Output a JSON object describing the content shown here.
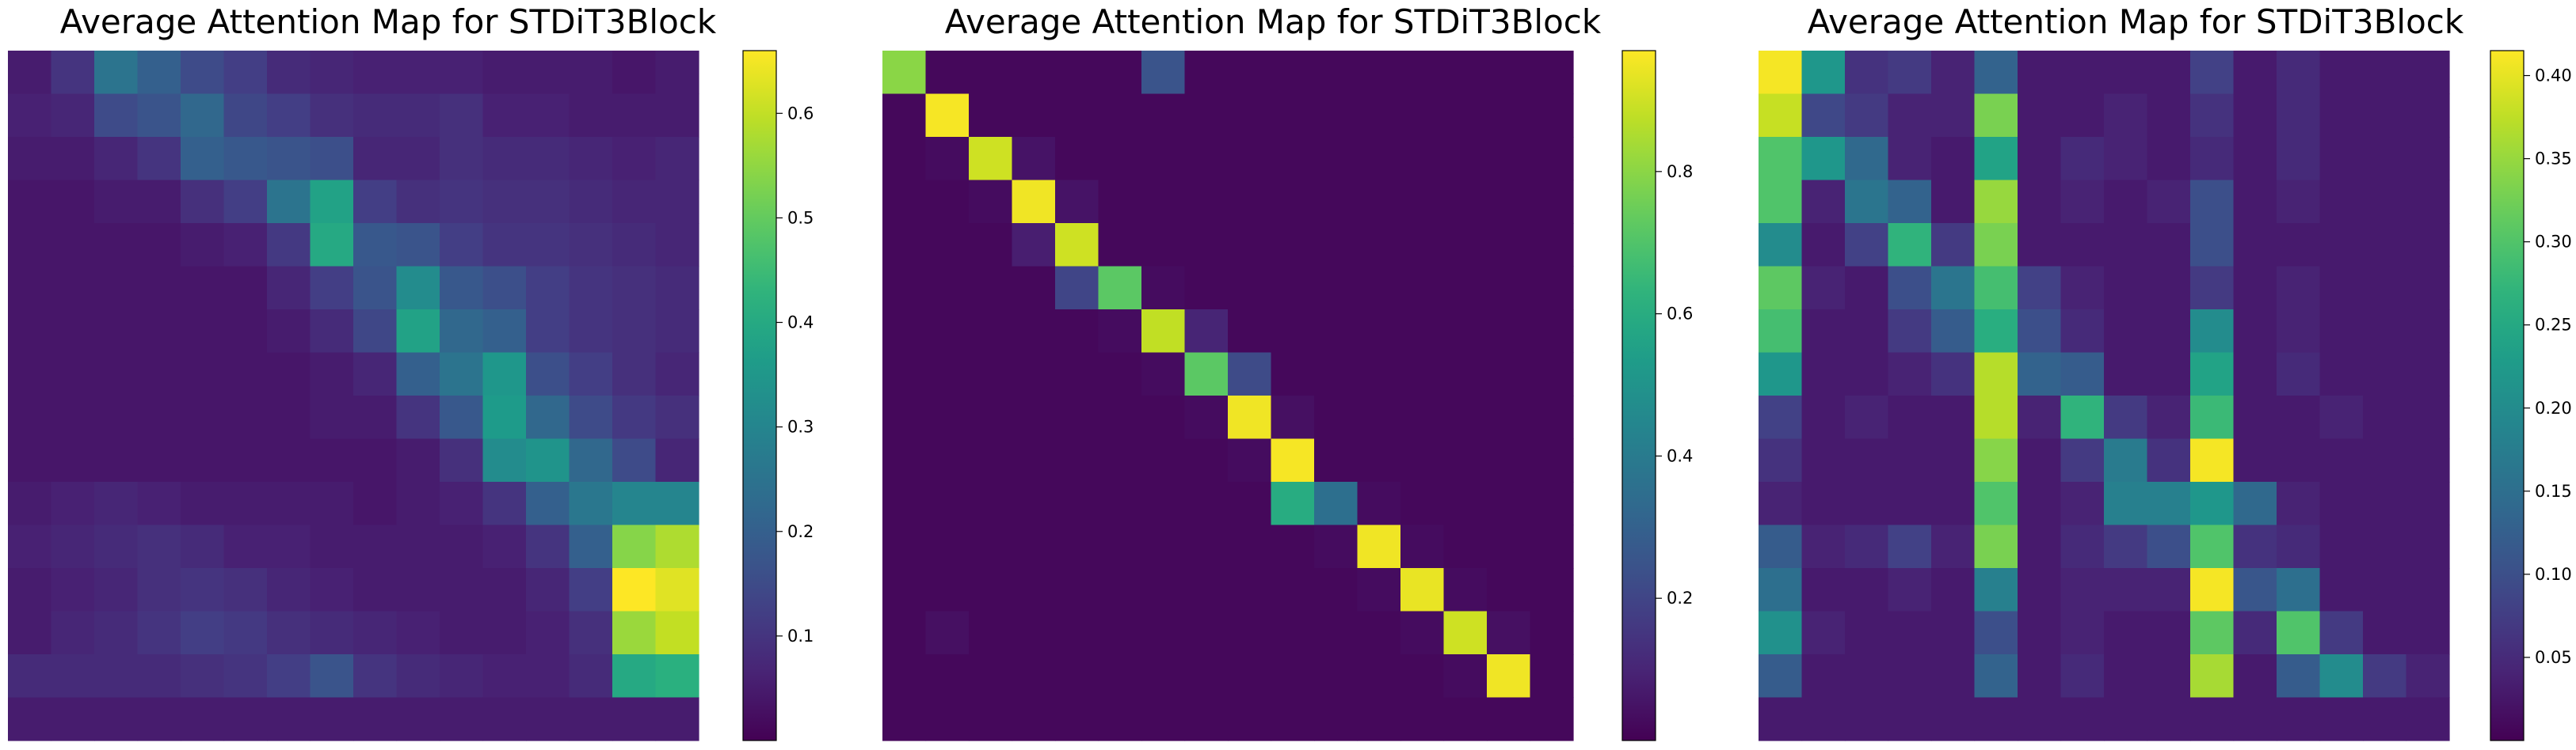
{
  "chart_data": [
    {
      "type": "heatmap",
      "title": "Average Attention Map for STDiT3Block",
      "colormap": "viridis",
      "vmin": 0.0,
      "vmax": 0.66,
      "colorbar_ticks": [
        "0.1",
        "0.2",
        "0.3",
        "0.4",
        "0.5",
        "0.6"
      ],
      "colorbar_tick_values": [
        0.1,
        0.2,
        0.3,
        0.4,
        0.5,
        0.6
      ],
      "matrix": [
        [
          0.05,
          0.1,
          0.25,
          0.2,
          0.15,
          0.12,
          0.08,
          0.07,
          0.06,
          0.06,
          0.06,
          0.05,
          0.05,
          0.05,
          0.04,
          0.05
        ],
        [
          0.06,
          0.07,
          0.15,
          0.17,
          0.22,
          0.14,
          0.12,
          0.09,
          0.08,
          0.08,
          0.09,
          0.06,
          0.06,
          0.05,
          0.05,
          0.05
        ],
        [
          0.05,
          0.05,
          0.07,
          0.1,
          0.2,
          0.18,
          0.17,
          0.16,
          0.07,
          0.07,
          0.09,
          0.08,
          0.08,
          0.07,
          0.06,
          0.07
        ],
        [
          0.04,
          0.04,
          0.05,
          0.05,
          0.09,
          0.12,
          0.25,
          0.38,
          0.12,
          0.09,
          0.1,
          0.09,
          0.09,
          0.08,
          0.07,
          0.07
        ],
        [
          0.04,
          0.04,
          0.04,
          0.04,
          0.05,
          0.06,
          0.11,
          0.4,
          0.18,
          0.17,
          0.12,
          0.1,
          0.1,
          0.09,
          0.08,
          0.07
        ],
        [
          0.04,
          0.04,
          0.04,
          0.04,
          0.04,
          0.04,
          0.07,
          0.12,
          0.17,
          0.32,
          0.18,
          0.16,
          0.12,
          0.1,
          0.09,
          0.08
        ],
        [
          0.04,
          0.04,
          0.04,
          0.04,
          0.04,
          0.04,
          0.05,
          0.08,
          0.14,
          0.38,
          0.22,
          0.2,
          0.12,
          0.1,
          0.09,
          0.08
        ],
        [
          0.04,
          0.04,
          0.04,
          0.04,
          0.04,
          0.04,
          0.04,
          0.05,
          0.07,
          0.2,
          0.25,
          0.35,
          0.16,
          0.12,
          0.09,
          0.07
        ],
        [
          0.04,
          0.04,
          0.04,
          0.04,
          0.04,
          0.04,
          0.04,
          0.05,
          0.05,
          0.1,
          0.18,
          0.36,
          0.22,
          0.15,
          0.11,
          0.09
        ],
        [
          0.04,
          0.04,
          0.04,
          0.04,
          0.04,
          0.04,
          0.04,
          0.04,
          0.04,
          0.05,
          0.09,
          0.32,
          0.34,
          0.22,
          0.15,
          0.07
        ],
        [
          0.05,
          0.06,
          0.07,
          0.06,
          0.05,
          0.05,
          0.05,
          0.05,
          0.04,
          0.05,
          0.06,
          0.1,
          0.2,
          0.26,
          0.3,
          0.3
        ],
        [
          0.06,
          0.07,
          0.08,
          0.09,
          0.08,
          0.06,
          0.06,
          0.05,
          0.05,
          0.05,
          0.05,
          0.06,
          0.1,
          0.2,
          0.54,
          0.58
        ],
        [
          0.05,
          0.06,
          0.07,
          0.09,
          0.1,
          0.09,
          0.07,
          0.06,
          0.05,
          0.05,
          0.05,
          0.05,
          0.07,
          0.12,
          0.66,
          0.63
        ],
        [
          0.05,
          0.07,
          0.08,
          0.1,
          0.12,
          0.11,
          0.09,
          0.08,
          0.07,
          0.06,
          0.05,
          0.05,
          0.06,
          0.09,
          0.56,
          0.6
        ],
        [
          0.08,
          0.08,
          0.08,
          0.08,
          0.09,
          0.1,
          0.12,
          0.17,
          0.1,
          0.08,
          0.07,
          0.06,
          0.06,
          0.08,
          0.4,
          0.42
        ],
        [
          0.05,
          0.05,
          0.05,
          0.05,
          0.05,
          0.05,
          0.05,
          0.05,
          0.05,
          0.05,
          0.05,
          0.05,
          0.05,
          0.05,
          0.05,
          0.05
        ]
      ]
    },
    {
      "type": "heatmap",
      "title": "Average Attention Map for STDiT3Block",
      "colormap": "viridis",
      "vmin": 0.0,
      "vmax": 0.97,
      "colorbar_ticks": [
        "0.2",
        "0.4",
        "0.6",
        "0.8"
      ],
      "colorbar_tick_values": [
        0.2,
        0.4,
        0.6,
        0.8
      ],
      "matrix": [
        [
          0.8,
          0.02,
          0.02,
          0.02,
          0.02,
          0.02,
          0.25,
          0.02,
          0.02,
          0.02,
          0.02,
          0.02,
          0.02,
          0.02,
          0.02,
          0.02
        ],
        [
          0.02,
          0.96,
          0.02,
          0.02,
          0.02,
          0.02,
          0.02,
          0.02,
          0.02,
          0.02,
          0.02,
          0.02,
          0.02,
          0.02,
          0.02,
          0.02
        ],
        [
          0.02,
          0.03,
          0.9,
          0.05,
          0.02,
          0.02,
          0.02,
          0.02,
          0.02,
          0.02,
          0.02,
          0.02,
          0.02,
          0.02,
          0.02,
          0.02
        ],
        [
          0.02,
          0.02,
          0.03,
          0.95,
          0.05,
          0.02,
          0.02,
          0.02,
          0.02,
          0.02,
          0.02,
          0.02,
          0.02,
          0.02,
          0.02,
          0.02
        ],
        [
          0.02,
          0.02,
          0.02,
          0.08,
          0.9,
          0.02,
          0.02,
          0.02,
          0.02,
          0.02,
          0.02,
          0.02,
          0.02,
          0.02,
          0.02,
          0.02
        ],
        [
          0.02,
          0.02,
          0.02,
          0.02,
          0.2,
          0.72,
          0.03,
          0.02,
          0.02,
          0.02,
          0.02,
          0.02,
          0.02,
          0.02,
          0.02,
          0.02
        ],
        [
          0.02,
          0.02,
          0.02,
          0.02,
          0.02,
          0.03,
          0.88,
          0.1,
          0.02,
          0.02,
          0.02,
          0.02,
          0.02,
          0.02,
          0.02,
          0.02
        ],
        [
          0.02,
          0.02,
          0.02,
          0.02,
          0.02,
          0.02,
          0.03,
          0.72,
          0.22,
          0.02,
          0.02,
          0.02,
          0.02,
          0.02,
          0.02,
          0.02
        ],
        [
          0.02,
          0.02,
          0.02,
          0.02,
          0.02,
          0.02,
          0.02,
          0.03,
          0.95,
          0.04,
          0.02,
          0.02,
          0.02,
          0.02,
          0.02,
          0.02
        ],
        [
          0.02,
          0.02,
          0.02,
          0.02,
          0.02,
          0.02,
          0.02,
          0.02,
          0.03,
          0.96,
          0.02,
          0.02,
          0.02,
          0.02,
          0.02,
          0.02
        ],
        [
          0.02,
          0.02,
          0.02,
          0.02,
          0.02,
          0.02,
          0.02,
          0.02,
          0.02,
          0.6,
          0.35,
          0.03,
          0.02,
          0.02,
          0.02,
          0.02
        ],
        [
          0.02,
          0.02,
          0.02,
          0.02,
          0.02,
          0.02,
          0.02,
          0.02,
          0.02,
          0.02,
          0.03,
          0.95,
          0.03,
          0.02,
          0.02,
          0.02
        ],
        [
          0.02,
          0.02,
          0.02,
          0.02,
          0.02,
          0.02,
          0.02,
          0.02,
          0.02,
          0.02,
          0.02,
          0.03,
          0.94,
          0.03,
          0.02,
          0.02
        ],
        [
          0.02,
          0.04,
          0.02,
          0.02,
          0.02,
          0.02,
          0.02,
          0.02,
          0.02,
          0.02,
          0.02,
          0.02,
          0.03,
          0.9,
          0.04,
          0.02
        ],
        [
          0.02,
          0.02,
          0.02,
          0.02,
          0.02,
          0.02,
          0.02,
          0.02,
          0.02,
          0.02,
          0.02,
          0.02,
          0.02,
          0.03,
          0.95,
          0.02
        ],
        [
          0.02,
          0.02,
          0.02,
          0.02,
          0.02,
          0.02,
          0.02,
          0.02,
          0.02,
          0.02,
          0.02,
          0.02,
          0.02,
          0.02,
          0.02,
          0.02
        ]
      ]
    },
    {
      "type": "heatmap",
      "title": "Average Attention Map for STDiT3Block",
      "colormap": "viridis",
      "vmin": 0.0,
      "vmax": 0.415,
      "colorbar_ticks": [
        "0.05",
        "0.10",
        "0.15",
        "0.20",
        "0.25",
        "0.30",
        "0.35",
        "0.40"
      ],
      "colorbar_tick_values": [
        0.05,
        0.1,
        0.15,
        0.2,
        0.25,
        0.3,
        0.35,
        0.4
      ],
      "matrix": [
        [
          0.41,
          0.22,
          0.06,
          0.07,
          0.04,
          0.13,
          0.03,
          0.03,
          0.03,
          0.03,
          0.08,
          0.03,
          0.05,
          0.03,
          0.03,
          0.03
        ],
        [
          0.38,
          0.09,
          0.07,
          0.04,
          0.04,
          0.33,
          0.03,
          0.03,
          0.04,
          0.03,
          0.06,
          0.03,
          0.05,
          0.03,
          0.03,
          0.03
        ],
        [
          0.3,
          0.22,
          0.14,
          0.04,
          0.03,
          0.24,
          0.03,
          0.05,
          0.04,
          0.03,
          0.05,
          0.03,
          0.05,
          0.03,
          0.03,
          0.03
        ],
        [
          0.3,
          0.04,
          0.16,
          0.13,
          0.03,
          0.35,
          0.03,
          0.04,
          0.03,
          0.04,
          0.1,
          0.03,
          0.04,
          0.03,
          0.03,
          0.03
        ],
        [
          0.2,
          0.03,
          0.08,
          0.27,
          0.07,
          0.33,
          0.03,
          0.03,
          0.03,
          0.03,
          0.1,
          0.03,
          0.03,
          0.03,
          0.03,
          0.03
        ],
        [
          0.31,
          0.04,
          0.03,
          0.1,
          0.16,
          0.29,
          0.08,
          0.04,
          0.03,
          0.03,
          0.07,
          0.03,
          0.04,
          0.03,
          0.03,
          0.03
        ],
        [
          0.29,
          0.03,
          0.03,
          0.07,
          0.12,
          0.26,
          0.1,
          0.05,
          0.03,
          0.03,
          0.2,
          0.03,
          0.04,
          0.03,
          0.03,
          0.03
        ],
        [
          0.22,
          0.03,
          0.03,
          0.04,
          0.06,
          0.37,
          0.13,
          0.12,
          0.03,
          0.03,
          0.24,
          0.03,
          0.05,
          0.03,
          0.03,
          0.03
        ],
        [
          0.08,
          0.03,
          0.04,
          0.03,
          0.03,
          0.37,
          0.04,
          0.27,
          0.07,
          0.04,
          0.28,
          0.03,
          0.03,
          0.04,
          0.03,
          0.03
        ],
        [
          0.06,
          0.03,
          0.03,
          0.03,
          0.03,
          0.34,
          0.03,
          0.07,
          0.17,
          0.06,
          0.41,
          0.03,
          0.03,
          0.03,
          0.03,
          0.03
        ],
        [
          0.04,
          0.03,
          0.03,
          0.03,
          0.03,
          0.3,
          0.03,
          0.04,
          0.18,
          0.18,
          0.22,
          0.14,
          0.04,
          0.03,
          0.03,
          0.03
        ],
        [
          0.12,
          0.04,
          0.05,
          0.08,
          0.04,
          0.33,
          0.03,
          0.05,
          0.07,
          0.1,
          0.3,
          0.06,
          0.05,
          0.03,
          0.03,
          0.03
        ],
        [
          0.15,
          0.03,
          0.03,
          0.04,
          0.03,
          0.18,
          0.03,
          0.04,
          0.04,
          0.04,
          0.41,
          0.11,
          0.15,
          0.03,
          0.03,
          0.03
        ],
        [
          0.21,
          0.04,
          0.03,
          0.03,
          0.03,
          0.1,
          0.03,
          0.04,
          0.03,
          0.03,
          0.31,
          0.05,
          0.3,
          0.07,
          0.03,
          0.03
        ],
        [
          0.12,
          0.03,
          0.03,
          0.03,
          0.03,
          0.13,
          0.03,
          0.05,
          0.03,
          0.03,
          0.36,
          0.03,
          0.12,
          0.2,
          0.07,
          0.04
        ],
        [
          0.03,
          0.03,
          0.03,
          0.03,
          0.03,
          0.03,
          0.03,
          0.03,
          0.03,
          0.03,
          0.03,
          0.03,
          0.03,
          0.03,
          0.03,
          0.03
        ]
      ]
    }
  ]
}
